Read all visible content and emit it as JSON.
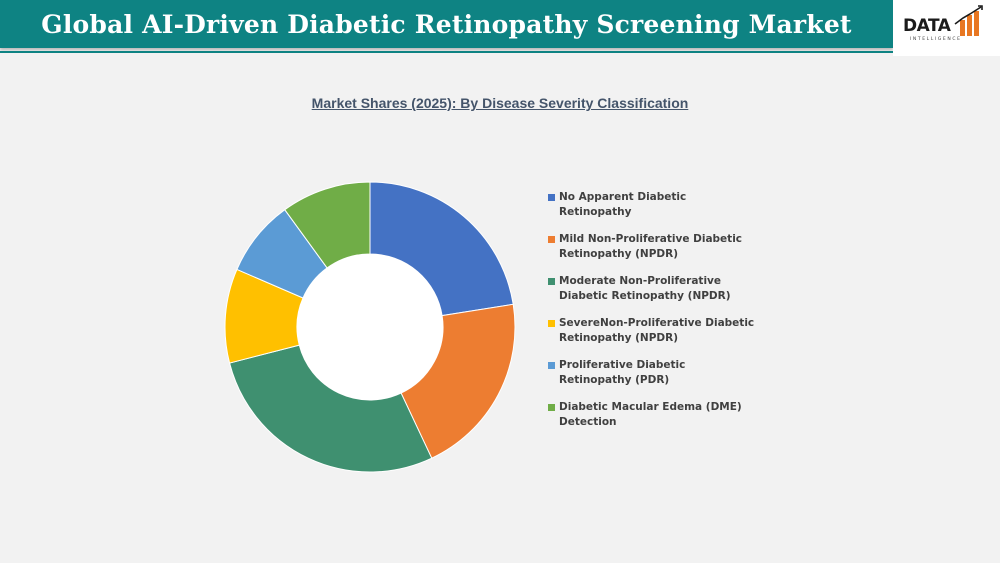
{
  "header": {
    "title": "Global AI-Driven Diabetic Retinopathy Screening Market"
  },
  "logo": {
    "text": "DATA",
    "subtext": "INTELLIGENCE"
  },
  "chart_data": {
    "type": "pie",
    "variant": "donut",
    "title": "Market Shares (2025): By Disease Severity Classification",
    "legend_position": "right",
    "categories": [
      "No Apparent Diabetic Retinopathy",
      "Mild Non-Proliferative Diabetic Retinopathy (NPDR)",
      "Moderate Non-Proliferative Diabetic Retinopathy (NPDR)",
      "SevereNon-Proliferative Diabetic Retinopathy (NPDR)",
      "Proliferative Diabetic Retinopathy (PDR)",
      "Diabetic Macular Edema (DME) Detection"
    ],
    "values": [
      22.5,
      20.5,
      28.0,
      10.5,
      8.5,
      10.0
    ],
    "colors": [
      "#4472c4",
      "#ed7d31",
      "#3f9070",
      "#ffc000",
      "#5b9bd5",
      "#70ad47"
    ]
  }
}
